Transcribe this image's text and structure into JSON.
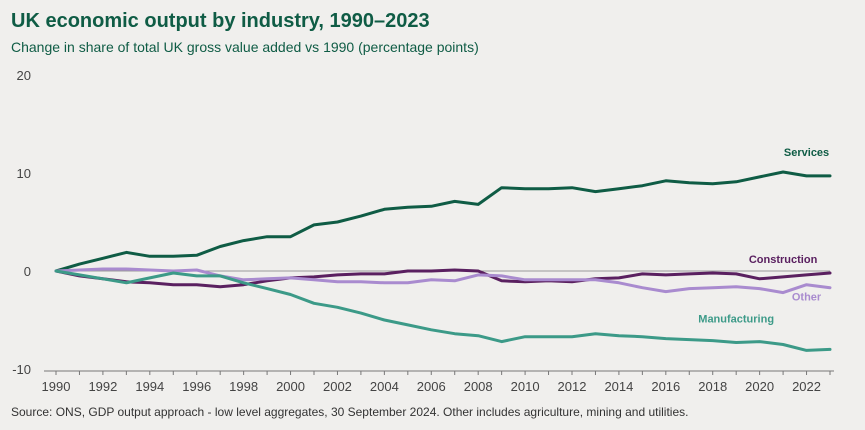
{
  "title": "UK economic output by industry, 1990–2023",
  "subtitle": "Change in share of total UK gross value added vs 1990 (percentage points)",
  "source": "Source:  ONS, GDP output approach - low level aggregates, 30 September 2024. Other includes agriculture, mining and utilities.",
  "chart_data": {
    "type": "line",
    "title": "UK economic output by industry, 1990–2023",
    "subtitle": "Change in share of total UK gross value added vs 1990 (percentage points)",
    "xlim": [
      1990,
      2023
    ],
    "ylim": [
      -10,
      20
    ],
    "x_ticks": [
      1990,
      1992,
      1994,
      1996,
      1998,
      2000,
      2002,
      2004,
      2006,
      2008,
      2010,
      2012,
      2014,
      2016,
      2018,
      2020,
      2022
    ],
    "y_ticks": [
      -10,
      0,
      10,
      20
    ],
    "grid": false,
    "x": [
      1990,
      1991,
      1992,
      1993,
      1994,
      1995,
      1996,
      1997,
      1998,
      1999,
      2000,
      2001,
      2002,
      2003,
      2004,
      2005,
      2006,
      2007,
      2008,
      2009,
      2010,
      2011,
      2012,
      2013,
      2014,
      2015,
      2016,
      2017,
      2018,
      2019,
      2020,
      2021,
      2022,
      2023
    ],
    "series": [
      {
        "name": "Services",
        "color": "#0f5c45",
        "values": [
          0,
          0.7,
          1.3,
          1.9,
          1.5,
          1.5,
          1.6,
          2.5,
          3.1,
          3.5,
          3.5,
          4.7,
          5.0,
          5.6,
          6.3,
          6.5,
          6.6,
          7.1,
          6.8,
          8.5,
          8.4,
          8.4,
          8.5,
          8.1,
          8.4,
          8.7,
          9.2,
          9.0,
          8.9,
          9.1,
          9.6,
          10.1,
          9.7,
          9.7
        ]
      },
      {
        "name": "Construction",
        "color": "#5a2060",
        "values": [
          0,
          -0.5,
          -0.8,
          -1.1,
          -1.2,
          -1.4,
          -1.4,
          -1.6,
          -1.4,
          -1.0,
          -0.7,
          -0.6,
          -0.4,
          -0.3,
          -0.3,
          0.0,
          0.0,
          0.1,
          0.0,
          -1.0,
          -1.1,
          -1.0,
          -1.1,
          -0.8,
          -0.7,
          -0.3,
          -0.4,
          -0.3,
          -0.2,
          -0.3,
          -0.8,
          -0.6,
          -0.4,
          -0.2
        ]
      },
      {
        "name": "Other",
        "color": "#a98bcf",
        "values": [
          0,
          0.1,
          0.2,
          0.2,
          0.1,
          0.0,
          0.1,
          -0.5,
          -0.9,
          -0.8,
          -0.7,
          -0.9,
          -1.1,
          -1.1,
          -1.2,
          -1.2,
          -0.9,
          -1.0,
          -0.4,
          -0.5,
          -0.9,
          -0.9,
          -0.9,
          -0.9,
          -1.2,
          -1.7,
          -2.1,
          -1.8,
          -1.7,
          -1.6,
          -1.8,
          -2.2,
          -1.4,
          -1.7
        ]
      },
      {
        "name": "Manufacturing",
        "color": "#3c9a88",
        "values": [
          0,
          -0.4,
          -0.8,
          -1.2,
          -0.7,
          -0.2,
          -0.5,
          -0.5,
          -1.2,
          -1.8,
          -2.4,
          -3.3,
          -3.7,
          -4.3,
          -5.0,
          -5.5,
          -6.0,
          -6.4,
          -6.6,
          -7.2,
          -6.7,
          -6.7,
          -6.7,
          -6.4,
          -6.6,
          -6.7,
          -6.9,
          -7.0,
          -7.1,
          -7.3,
          -7.2,
          -7.5,
          -8.1,
          -8.0
        ]
      }
    ]
  }
}
